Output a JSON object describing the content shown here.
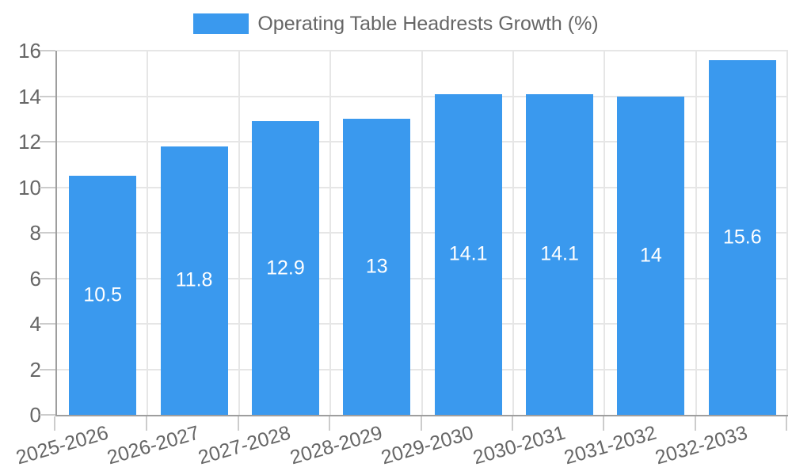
{
  "legend": {
    "label": "Operating Table Headrests Growth (%)"
  },
  "colors": {
    "bar": "#3A99EE",
    "grid": "#e6e6e6",
    "axis_line": "#9e9e9e",
    "tick_mark": "#cccccc",
    "axis_label": "#666666",
    "value_label": "#ffffff",
    "background": "#ffffff"
  },
  "chart_data": {
    "type": "bar",
    "title": "Operating Table Headrests Growth (%)",
    "categories": [
      "2025-2026",
      "2026-2027",
      "2027-2028",
      "2028-2029",
      "2029-2030",
      "2030-2031",
      "2031-2032",
      "2032-2033"
    ],
    "values": [
      10.5,
      11.8,
      12.9,
      13,
      14.1,
      14.1,
      14,
      15.6
    ],
    "value_labels": [
      "10.5",
      "11.8",
      "12.9",
      "13",
      "14.1",
      "14.1",
      "14",
      "15.6"
    ],
    "xlabel": "",
    "ylabel": "",
    "ylim": [
      0,
      16
    ],
    "yticks": [
      0,
      2,
      4,
      6,
      8,
      10,
      12,
      14,
      16
    ],
    "grid": true,
    "legend_position": "top",
    "value_label_position": "inside-center",
    "xtick_label_rotation_deg": -16
  }
}
